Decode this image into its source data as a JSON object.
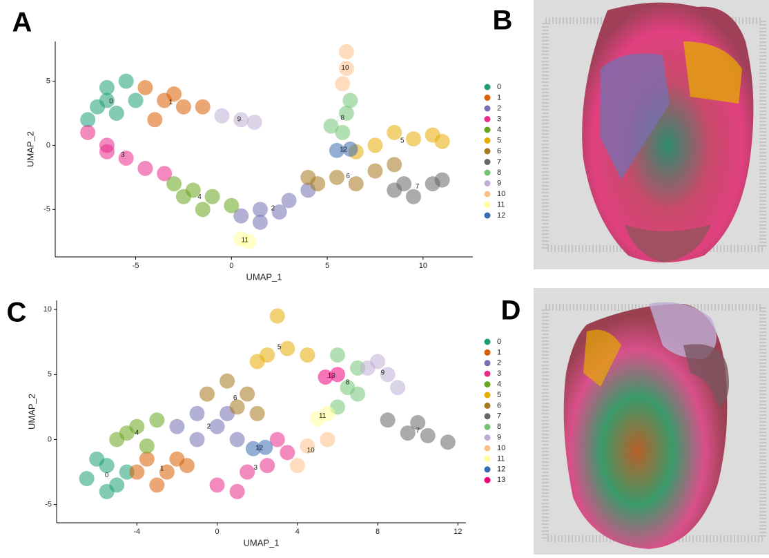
{
  "chart_data": [
    {
      "type": "scatter",
      "panel_label": "A",
      "xlabel": "UMAP_1",
      "ylabel": "UMAP_2",
      "xlim": [
        -9.2,
        12.6
      ],
      "ylim": [
        -8.7,
        8.1
      ],
      "xticks": [
        -5,
        0,
        5,
        10
      ],
      "yticks": [
        -5,
        0,
        5
      ],
      "series": [
        {
          "name": "0",
          "color": "#1b9e77",
          "x": [
            -7,
            -6.5,
            -5.5,
            -6,
            -7.5,
            -5,
            -6.5
          ],
          "y": [
            3,
            4.5,
            5,
            2.5,
            2,
            3.5,
            3.5
          ]
        },
        {
          "name": "1",
          "color": "#d95f02",
          "x": [
            -4.5,
            -3.5,
            -2.5,
            -4,
            -3,
            -1.5
          ],
          "y": [
            4.5,
            3.5,
            3,
            2,
            4,
            3
          ]
        },
        {
          "name": "2",
          "color": "#7570b3",
          "x": [
            0.5,
            1.5,
            2.5,
            3,
            4,
            1.5
          ],
          "y": [
            -5.5,
            -5,
            -5.2,
            -4.3,
            -3.5,
            -6
          ]
        },
        {
          "name": "3",
          "color": "#e7298a",
          "x": [
            -7.5,
            -6.5,
            -5.5,
            -4.5,
            -3.5,
            -6.5
          ],
          "y": [
            1,
            0,
            -1,
            -1.8,
            -2.2,
            -0.5
          ]
        },
        {
          "name": "4",
          "color": "#66a61e",
          "x": [
            -3,
            -2,
            -1,
            0,
            -1.5,
            -2.5
          ],
          "y": [
            -3,
            -3.5,
            -4,
            -4.7,
            -5,
            -4
          ]
        },
        {
          "name": "5",
          "color": "#e6ab02",
          "x": [
            7.5,
            8.5,
            9.5,
            10.5,
            11,
            6.5
          ],
          "y": [
            0,
            1,
            0.5,
            0.8,
            0.3,
            -0.5
          ]
        },
        {
          "name": "6",
          "color": "#a6761d",
          "x": [
            4.5,
            5.5,
            6.5,
            7.5,
            8.5,
            4
          ],
          "y": [
            -3,
            -2.5,
            -3,
            -2,
            -1.5,
            -2.5
          ]
        },
        {
          "name": "7",
          "color": "#666666",
          "x": [
            8.5,
            9.5,
            10.5,
            11,
            9
          ],
          "y": [
            -3.5,
            -4,
            -3,
            -2.7,
            -3
          ]
        },
        {
          "name": "8",
          "color": "#74c476",
          "x": [
            5.2,
            6,
            6.2,
            5.8
          ],
          "y": [
            1.5,
            2.5,
            3.5,
            1
          ]
        },
        {
          "name": "9",
          "color": "#beaed4",
          "x": [
            -0.5,
            0.5,
            1.2
          ],
          "y": [
            2.3,
            2,
            1.8
          ]
        },
        {
          "name": "10",
          "color": "#fdc086",
          "x": [
            6,
            6,
            5.8
          ],
          "y": [
            7.3,
            6,
            4.8
          ]
        },
        {
          "name": "11",
          "color": "#ffff99",
          "x": [
            0.5,
            0.9
          ],
          "y": [
            -7.3,
            -7.5
          ]
        },
        {
          "name": "12",
          "color": "#386cb0",
          "x": [
            5.5,
            6.2
          ],
          "y": [
            -0.4,
            -0.3
          ]
        }
      ]
    },
    {
      "type": "scatter",
      "panel_label": "C",
      "xlabel": "UMAP_1",
      "ylabel": "UMAP_2",
      "xlim": [
        -8.0,
        12.4
      ],
      "ylim": [
        -6.4,
        10.7
      ],
      "xticks": [
        -4,
        0,
        4,
        8,
        12
      ],
      "yticks": [
        -5,
        0,
        5,
        10
      ],
      "series": [
        {
          "name": "0",
          "color": "#1b9e77",
          "x": [
            -6.5,
            -5.5,
            -5,
            -4.5,
            -6,
            -5.5
          ],
          "y": [
            -3,
            -2,
            -3.5,
            -2.5,
            -1.5,
            -4
          ]
        },
        {
          "name": "1",
          "color": "#d95f02",
          "x": [
            -3.5,
            -2.5,
            -2,
            -3,
            -1.5,
            -4
          ],
          "y": [
            -1.5,
            -2.5,
            -1.5,
            -3.5,
            -2,
            -2.5
          ]
        },
        {
          "name": "2",
          "color": "#7570b3",
          "x": [
            -2,
            -1,
            0,
            0.5,
            -1,
            1
          ],
          "y": [
            1,
            0,
            1,
            2,
            2,
            0
          ]
        },
        {
          "name": "3",
          "color": "#e7298a",
          "x": [
            0,
            1.5,
            2.5,
            3.5,
            1,
            3
          ],
          "y": [
            -3.5,
            -2.5,
            -2,
            -1,
            -4,
            0
          ]
        },
        {
          "name": "4",
          "color": "#66a61e",
          "x": [
            -5,
            -4,
            -3,
            -3.5,
            -4.5
          ],
          "y": [
            0,
            1,
            1.5,
            -0.5,
            0.5
          ]
        },
        {
          "name": "5",
          "color": "#e6ab02",
          "x": [
            2.5,
            3.5,
            3,
            4.5,
            2
          ],
          "y": [
            6.5,
            7,
            9.5,
            6.5,
            6
          ]
        },
        {
          "name": "6",
          "color": "#a6761d",
          "x": [
            0.5,
            1,
            2,
            1.5,
            -0.5
          ],
          "y": [
            4.5,
            2.5,
            2,
            3.5,
            3.5
          ]
        },
        {
          "name": "7",
          "color": "#666666",
          "x": [
            8.5,
            10,
            10.5,
            11.5,
            9.5
          ],
          "y": [
            1.5,
            1.3,
            0.3,
            -0.2,
            0.5
          ]
        },
        {
          "name": "8",
          "color": "#74c476",
          "x": [
            6,
            6.5,
            7,
            6,
            7
          ],
          "y": [
            6.5,
            4,
            3.5,
            2.5,
            5.5
          ]
        },
        {
          "name": "9",
          "color": "#beaed4",
          "x": [
            7.5,
            8.5,
            9,
            8
          ],
          "y": [
            5.5,
            5,
            4,
            6
          ]
        },
        {
          "name": "10",
          "color": "#fdc086",
          "x": [
            4.5,
            5.5,
            4
          ],
          "y": [
            -0.5,
            0,
            -2
          ]
        },
        {
          "name": "11",
          "color": "#ffff99",
          "x": [
            5,
            5.5
          ],
          "y": [
            1.6,
            2
          ]
        },
        {
          "name": "12",
          "color": "#386cb0",
          "x": [
            1.8,
            2.4
          ],
          "y": [
            -0.7,
            -0.6
          ]
        },
        {
          "name": "13",
          "color": "#f0027f",
          "x": [
            5.4,
            6
          ],
          "y": [
            4.8,
            5
          ]
        }
      ]
    }
  ],
  "images": [
    {
      "panel_label": "B"
    },
    {
      "panel_label": "D"
    }
  ]
}
